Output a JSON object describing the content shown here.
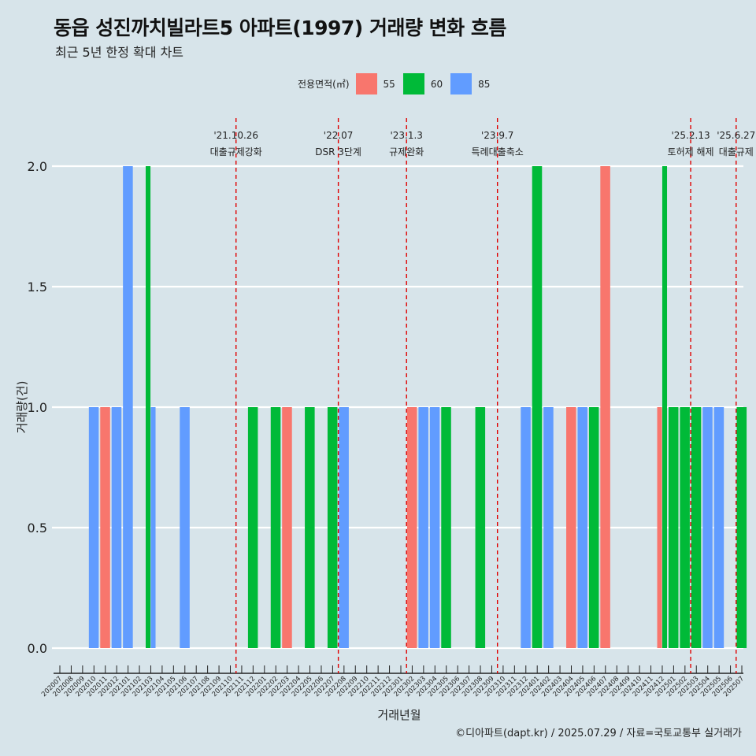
{
  "title": "동읍 성진까치빌라트5 아파트(1997) 거래량 변화 흐름",
  "subtitle": "최근 5년 한정 확대 차트",
  "caption": "©디아파트(dapt.kr) / 2025.07.29 / 자료=국토교통부 실거래가",
  "legend": {
    "title": "전용면적(㎡)",
    "items": [
      {
        "label": "55",
        "color": "#f8766d"
      },
      {
        "label": "60",
        "color": "#00ba38"
      },
      {
        "label": "85",
        "color": "#619cff"
      }
    ]
  },
  "chart_data": {
    "type": "bar",
    "xlabel": "거래년월",
    "ylabel": "거래량(건)",
    "ylim": [
      0,
      2
    ],
    "y_ticks": [
      "0.0",
      "0.5",
      "1.0",
      "1.5",
      "2.0"
    ],
    "categories": [
      "202007",
      "202008",
      "202009",
      "202010",
      "202011",
      "202012",
      "202101",
      "202102",
      "202103",
      "202104",
      "202105",
      "202106",
      "202107",
      "202108",
      "202109",
      "202110",
      "202111",
      "202112",
      "202201",
      "202202",
      "202203",
      "202204",
      "202205",
      "202206",
      "202207",
      "202208",
      "202209",
      "202210",
      "202211",
      "202212",
      "202301",
      "202302",
      "202303",
      "202304",
      "202305",
      "202306",
      "202307",
      "202308",
      "202309",
      "202310",
      "202311",
      "202312",
      "202401",
      "202402",
      "202403",
      "202404",
      "202405",
      "202406",
      "202407",
      "202408",
      "202409",
      "202410",
      "202411",
      "202412",
      "202501",
      "202502",
      "202503",
      "202504",
      "202505",
      "202506",
      "202507"
    ],
    "bars": [
      {
        "month": "202010",
        "area": "85",
        "value": 1
      },
      {
        "month": "202011",
        "area": "55",
        "value": 1
      },
      {
        "month": "202012",
        "area": "85",
        "value": 1
      },
      {
        "month": "202101",
        "area": "85",
        "value": 2
      },
      {
        "month": "202103",
        "area": "60",
        "value": 2
      },
      {
        "month": "202103",
        "area": "85",
        "value": 1
      },
      {
        "month": "202106",
        "area": "85",
        "value": 1
      },
      {
        "month": "202112",
        "area": "60",
        "value": 1
      },
      {
        "month": "202202",
        "area": "60",
        "value": 1
      },
      {
        "month": "202203",
        "area": "55",
        "value": 1
      },
      {
        "month": "202205",
        "area": "60",
        "value": 1
      },
      {
        "month": "202207",
        "area": "60",
        "value": 1
      },
      {
        "month": "202208",
        "area": "85",
        "value": 1
      },
      {
        "month": "202302",
        "area": "55",
        "value": 1
      },
      {
        "month": "202303",
        "area": "85",
        "value": 1
      },
      {
        "month": "202304",
        "area": "85",
        "value": 1
      },
      {
        "month": "202305",
        "area": "60",
        "value": 1
      },
      {
        "month": "202308",
        "area": "60",
        "value": 1
      },
      {
        "month": "202312",
        "area": "85",
        "value": 1
      },
      {
        "month": "202401",
        "area": "60",
        "value": 2
      },
      {
        "month": "202402",
        "area": "85",
        "value": 1
      },
      {
        "month": "202404",
        "area": "55",
        "value": 1
      },
      {
        "month": "202405",
        "area": "85",
        "value": 1
      },
      {
        "month": "202406",
        "area": "60",
        "value": 1
      },
      {
        "month": "202407",
        "area": "55",
        "value": 2
      },
      {
        "month": "202412",
        "area": "55",
        "value": 1
      },
      {
        "month": "202412",
        "area": "60",
        "value": 2
      },
      {
        "month": "202501",
        "area": "60",
        "value": 1
      },
      {
        "month": "202502",
        "area": "60",
        "value": 1
      },
      {
        "month": "202503",
        "area": "60",
        "value": 1
      },
      {
        "month": "202504",
        "area": "85",
        "value": 1
      },
      {
        "month": "202505",
        "area": "85",
        "value": 1
      },
      {
        "month": "202507",
        "area": "60",
        "value": 1
      }
    ],
    "events": [
      {
        "date": "'21.10.26",
        "label": "대출규제강화",
        "month": "202110"
      },
      {
        "date": "'22.07",
        "label": "DSR 3단계",
        "month": "202207"
      },
      {
        "date": "'23.1.3",
        "label": "규제완화",
        "month": "202301"
      },
      {
        "date": "'23.9.7",
        "label": "특례대출축소",
        "month": "202309"
      },
      {
        "date": "'25.2.13",
        "label": "토허제 해제",
        "month": "202502"
      },
      {
        "date": "'25.6.27",
        "label": "대출규제",
        "month": "202506"
      }
    ]
  }
}
